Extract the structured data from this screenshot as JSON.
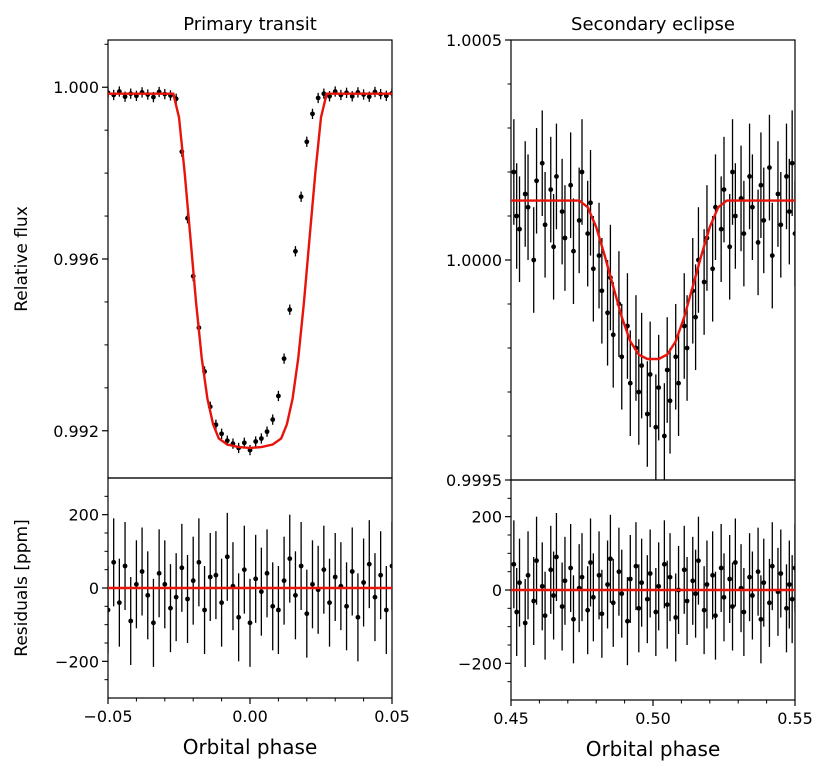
{
  "chart_data": [
    {
      "id": "transit_flux",
      "type": "scatter",
      "title": "Primary transit",
      "ylabel": "Relative flux",
      "xlim": [
        -0.05,
        0.05
      ],
      "ylim": [
        0.9909,
        1.0011
      ],
      "yticks": [
        {
          "v": 0.992,
          "label": "0.992"
        },
        {
          "v": 0.996,
          "label": "0.996"
        },
        {
          "v": 1.0,
          "label": "1.000"
        }
      ],
      "yminor": [
        0.993,
        0.994,
        0.995,
        0.997,
        0.998,
        0.999,
        1.001
      ],
      "xticks": [],
      "error": 0.00012,
      "model_color": "#e8140c",
      "points": [
        [
          -0.05,
          0.99987
        ],
        [
          -0.048,
          0.99982
        ],
        [
          -0.046,
          0.9999
        ],
        [
          -0.044,
          0.99978
        ],
        [
          -0.042,
          0.99985
        ],
        [
          -0.04,
          0.9998
        ],
        [
          -0.038,
          0.99988
        ],
        [
          -0.036,
          0.99983
        ],
        [
          -0.034,
          0.99977
        ],
        [
          -0.032,
          0.99989
        ],
        [
          -0.03,
          0.99984
        ],
        [
          -0.028,
          0.99981
        ],
        [
          -0.026,
          0.99973
        ],
        [
          -0.024,
          0.9985
        ],
        [
          -0.022,
          0.99695
        ],
        [
          -0.02,
          0.9956
        ],
        [
          -0.018,
          0.9944
        ],
        [
          -0.016,
          0.99338
        ],
        [
          -0.014,
          0.99256
        ],
        [
          -0.012,
          0.99214
        ],
        [
          -0.01,
          0.99193
        ],
        [
          -0.008,
          0.99177
        ],
        [
          -0.006,
          0.9917
        ],
        [
          -0.004,
          0.9916
        ],
        [
          -0.002,
          0.99172
        ],
        [
          0.0,
          0.99155
        ],
        [
          0.002,
          0.99175
        ],
        [
          0.004,
          0.99182
        ],
        [
          0.006,
          0.99198
        ],
        [
          0.008,
          0.99226
        ],
        [
          0.01,
          0.99281
        ],
        [
          0.012,
          0.99368
        ],
        [
          0.014,
          0.99482
        ],
        [
          0.016,
          0.99618
        ],
        [
          0.018,
          0.99745
        ],
        [
          0.02,
          0.99873
        ],
        [
          0.022,
          0.99938
        ],
        [
          0.024,
          0.99975
        ],
        [
          0.026,
          0.99985
        ],
        [
          0.028,
          0.99979
        ],
        [
          0.03,
          0.9999
        ],
        [
          0.032,
          0.99982
        ],
        [
          0.034,
          0.99987
        ],
        [
          0.036,
          0.99979
        ],
        [
          0.038,
          0.99988
        ],
        [
          0.04,
          0.99983
        ],
        [
          0.042,
          0.99978
        ],
        [
          0.044,
          0.99989
        ],
        [
          0.046,
          0.99984
        ],
        [
          0.048,
          0.9998
        ],
        [
          0.05,
          0.99986
        ]
      ],
      "model": [
        [
          -0.05,
          0.99985
        ],
        [
          -0.027,
          0.99985
        ],
        [
          -0.025,
          0.9993
        ],
        [
          -0.023,
          0.998
        ],
        [
          -0.021,
          0.9965
        ],
        [
          -0.019,
          0.995
        ],
        [
          -0.017,
          0.9937
        ],
        [
          -0.015,
          0.99275
        ],
        [
          -0.013,
          0.99215
        ],
        [
          -0.011,
          0.99182
        ],
        [
          -0.008,
          0.99168
        ],
        [
          -0.004,
          0.99162
        ],
        [
          0.0,
          0.9916
        ],
        [
          0.004,
          0.99162
        ],
        [
          0.008,
          0.99168
        ],
        [
          0.011,
          0.99182
        ],
        [
          0.013,
          0.99215
        ],
        [
          0.015,
          0.99275
        ],
        [
          0.017,
          0.9937
        ],
        [
          0.019,
          0.995
        ],
        [
          0.021,
          0.9965
        ],
        [
          0.023,
          0.998
        ],
        [
          0.025,
          0.9993
        ],
        [
          0.027,
          0.99985
        ],
        [
          0.05,
          0.99985
        ]
      ]
    },
    {
      "id": "transit_resid",
      "type": "scatter",
      "title": "",
      "ylabel": "Residuals [ppm]",
      "xlabel": "Orbital phase",
      "xlim": [
        -0.05,
        0.05
      ],
      "ylim": [
        -300,
        300
      ],
      "yticks": [
        {
          "v": -200,
          "label": "−200"
        },
        {
          "v": 0,
          "label": "0"
        },
        {
          "v": 200,
          "label": "200"
        }
      ],
      "yminor": [
        -250,
        -150,
        -100,
        -50,
        50,
        100,
        150,
        250
      ],
      "xticks": [
        {
          "v": -0.05,
          "label": "−0.05"
        },
        {
          "v": 0.0,
          "label": "0.00"
        },
        {
          "v": 0.05,
          "label": "0.05"
        }
      ],
      "xminor": [
        -0.04,
        -0.03,
        -0.02,
        -0.01,
        0.01,
        0.02,
        0.03,
        0.04
      ],
      "error": 120,
      "model_color": "#e8140c",
      "points": [
        [
          -0.05,
          -60
        ],
        [
          -0.048,
          70
        ],
        [
          -0.046,
          -40
        ],
        [
          -0.044,
          60
        ],
        [
          -0.042,
          -90
        ],
        [
          -0.04,
          10
        ],
        [
          -0.038,
          45
        ],
        [
          -0.036,
          -20
        ],
        [
          -0.034,
          -95
        ],
        [
          -0.032,
          40
        ],
        [
          -0.03,
          10
        ],
        [
          -0.028,
          -55
        ],
        [
          -0.026,
          -25
        ],
        [
          -0.024,
          55
        ],
        [
          -0.022,
          -30
        ],
        [
          -0.02,
          20
        ],
        [
          -0.018,
          70
        ],
        [
          -0.016,
          -60
        ],
        [
          -0.014,
          30
        ],
        [
          -0.012,
          35
        ],
        [
          -0.01,
          -40
        ],
        [
          -0.008,
          85
        ],
        [
          -0.006,
          5
        ],
        [
          -0.004,
          -80
        ],
        [
          -0.002,
          50
        ],
        [
          0.0,
          -95
        ],
        [
          0.002,
          25
        ],
        [
          0.004,
          -10
        ],
        [
          0.006,
          40
        ],
        [
          0.008,
          -50
        ],
        [
          0.01,
          -60
        ],
        [
          0.012,
          20
        ],
        [
          0.014,
          80
        ],
        [
          0.016,
          -20
        ],
        [
          0.018,
          60
        ],
        [
          0.02,
          -70
        ],
        [
          0.022,
          10
        ],
        [
          0.024,
          -5
        ],
        [
          0.026,
          50
        ],
        [
          0.028,
          -40
        ],
        [
          0.03,
          30
        ],
        [
          0.032,
          5
        ],
        [
          0.034,
          -50
        ],
        [
          0.036,
          45
        ],
        [
          0.038,
          -80
        ],
        [
          0.04,
          15
        ],
        [
          0.042,
          65
        ],
        [
          0.044,
          -25
        ],
        [
          0.046,
          35
        ],
        [
          0.048,
          -60
        ],
        [
          0.05,
          60
        ]
      ],
      "model": [
        [
          -0.05,
          0
        ],
        [
          0.05,
          0
        ]
      ]
    },
    {
      "id": "eclipse_flux",
      "type": "scatter",
      "title": "Secondary eclipse",
      "ylabel": "",
      "xlim": [
        0.45,
        0.55
      ],
      "ylim": [
        0.9995,
        1.0005
      ],
      "yticks": [
        {
          "v": 0.9995,
          "label": "0.9995"
        },
        {
          "v": 1.0,
          "label": "1.0000"
        },
        {
          "v": 1.0005,
          "label": "1.0005"
        }
      ],
      "yminor": [
        0.9996,
        0.9997,
        0.9998,
        0.9999,
        1.0001,
        1.0002,
        1.0003,
        1.0004
      ],
      "xticks": [],
      "error": 0.00012,
      "model_color": "#e8140c",
      "points": [
        [
          0.451,
          1.0002
        ],
        [
          0.452,
          1.0001
        ],
        [
          0.453,
          1.00007
        ],
        [
          0.455,
          1.00015
        ],
        [
          0.456,
          1.00012
        ],
        [
          0.458,
          1.0
        ],
        [
          0.459,
          1.00018
        ],
        [
          0.461,
          1.00022
        ],
        [
          0.462,
          1.00008
        ],
        [
          0.464,
          1.00016
        ],
        [
          0.465,
          1.00003
        ],
        [
          0.466,
          1.00019
        ],
        [
          0.468,
          1.00011
        ],
        [
          0.469,
          1.00005
        ],
        [
          0.471,
          1.00017
        ],
        [
          0.472,
          1.00002
        ],
        [
          0.474,
          1.00009
        ],
        [
          0.475,
          1.0002
        ],
        [
          0.477,
          1.00006
        ],
        [
          0.478,
          1.00013
        ],
        [
          0.479,
          0.99998
        ],
        [
          0.481,
          1.00001
        ],
        [
          0.482,
          0.99993
        ],
        [
          0.484,
          0.99988
        ],
        [
          0.485,
          0.99996
        ],
        [
          0.486,
          0.99983
        ],
        [
          0.488,
          0.9999
        ],
        [
          0.489,
          0.99978
        ],
        [
          0.491,
          0.99985
        ],
        [
          0.492,
          0.99972
        ],
        [
          0.494,
          0.9998
        ],
        [
          0.495,
          0.9997
        ],
        [
          0.496,
          0.99976
        ],
        [
          0.498,
          0.99965
        ],
        [
          0.499,
          0.99974
        ],
        [
          0.501,
          0.99962
        ],
        [
          0.502,
          0.99971
        ],
        [
          0.504,
          0.9996
        ],
        [
          0.505,
          0.99975
        ],
        [
          0.506,
          0.99968
        ],
        [
          0.508,
          0.99978
        ],
        [
          0.509,
          0.99972
        ],
        [
          0.511,
          0.99985
        ],
        [
          0.512,
          0.9998
        ],
        [
          0.514,
          0.99993
        ],
        [
          0.515,
          0.99987
        ],
        [
          0.516,
          1.0
        ],
        [
          0.518,
          0.99995
        ],
        [
          0.519,
          1.00005
        ],
        [
          0.521,
          0.99998
        ],
        [
          0.522,
          1.00012
        ],
        [
          0.524,
          1.00007
        ],
        [
          0.525,
          1.00016
        ],
        [
          0.527,
          1.00003
        ],
        [
          0.528,
          1.0002
        ],
        [
          0.529,
          1.0001
        ],
        [
          0.531,
          1.00014
        ],
        [
          0.532,
          1.00006
        ],
        [
          0.534,
          1.00019
        ],
        [
          0.535,
          1.00012
        ],
        [
          0.537,
          1.00004
        ],
        [
          0.538,
          1.00017
        ],
        [
          0.539,
          1.00009
        ],
        [
          0.541,
          1.00021
        ],
        [
          0.542,
          1.00001
        ],
        [
          0.544,
          1.00015
        ],
        [
          0.545,
          1.00008
        ],
        [
          0.547,
          1.00019
        ],
        [
          0.548,
          1.00011
        ],
        [
          0.549,
          1.00022
        ],
        [
          0.55,
          1.00006
        ]
      ],
      "model": [
        [
          0.45,
          1.000135
        ],
        [
          0.474,
          1.000135
        ],
        [
          0.477,
          1.00012
        ],
        [
          0.48,
          1.000075
        ],
        [
          0.483,
          1.00001
        ],
        [
          0.486,
          0.99994
        ],
        [
          0.489,
          0.99987
        ],
        [
          0.492,
          0.999815
        ],
        [
          0.495,
          0.999785
        ],
        [
          0.498,
          0.999775
        ],
        [
          0.502,
          0.999775
        ],
        [
          0.505,
          0.999785
        ],
        [
          0.508,
          0.999815
        ],
        [
          0.511,
          0.99987
        ],
        [
          0.514,
          0.99994
        ],
        [
          0.517,
          1.00001
        ],
        [
          0.52,
          1.000075
        ],
        [
          0.523,
          1.00012
        ],
        [
          0.526,
          1.000135
        ],
        [
          0.55,
          1.000135
        ]
      ]
    },
    {
      "id": "eclipse_resid",
      "type": "scatter",
      "title": "",
      "ylabel": "",
      "xlabel": "Orbital phase",
      "xlim": [
        0.45,
        0.55
      ],
      "ylim": [
        -300,
        300
      ],
      "yticks": [
        {
          "v": -200,
          "label": "−200"
        },
        {
          "v": 0,
          "label": "0"
        },
        {
          "v": 200,
          "label": "200"
        }
      ],
      "yminor": [
        -250,
        -150,
        -100,
        -50,
        50,
        100,
        150,
        250
      ],
      "xticks": [
        {
          "v": 0.45,
          "label": "0.45"
        },
        {
          "v": 0.5,
          "label": "0.50"
        },
        {
          "v": 0.55,
          "label": "0.55"
        }
      ],
      "xminor": [
        0.46,
        0.47,
        0.48,
        0.49,
        0.51,
        0.52,
        0.53,
        0.54
      ],
      "error": 120,
      "model_color": "#e8140c",
      "points": [
        [
          0.451,
          70
        ],
        [
          0.452,
          -60
        ],
        [
          0.453,
          20
        ],
        [
          0.455,
          -90
        ],
        [
          0.456,
          40
        ],
        [
          0.458,
          -30
        ],
        [
          0.459,
          80
        ],
        [
          0.461,
          10
        ],
        [
          0.462,
          -70
        ],
        [
          0.464,
          55
        ],
        [
          0.465,
          -15
        ],
        [
          0.466,
          90
        ],
        [
          0.468,
          -45
        ],
        [
          0.469,
          25
        ],
        [
          0.471,
          60
        ],
        [
          0.472,
          -80
        ],
        [
          0.474,
          5
        ],
        [
          0.475,
          35
        ],
        [
          0.477,
          -55
        ],
        [
          0.478,
          75
        ],
        [
          0.479,
          -20
        ],
        [
          0.481,
          40
        ],
        [
          0.482,
          -65
        ],
        [
          0.484,
          15
        ],
        [
          0.485,
          85
        ],
        [
          0.486,
          -35
        ],
        [
          0.488,
          50
        ],
        [
          0.489,
          -10
        ],
        [
          0.491,
          -85
        ],
        [
          0.492,
          30
        ],
        [
          0.494,
          65
        ],
        [
          0.495,
          -50
        ],
        [
          0.496,
          20
        ],
        [
          0.498,
          -25
        ],
        [
          0.499,
          45
        ],
        [
          0.501,
          -60
        ],
        [
          0.502,
          10
        ],
        [
          0.504,
          70
        ],
        [
          0.505,
          -40
        ],
        [
          0.506,
          35
        ],
        [
          0.508,
          -75
        ],
        [
          0.509,
          0
        ],
        [
          0.511,
          55
        ],
        [
          0.512,
          -30
        ],
        [
          0.514,
          25
        ],
        [
          0.515,
          -10
        ],
        [
          0.516,
          80
        ],
        [
          0.518,
          -55
        ],
        [
          0.519,
          15
        ],
        [
          0.521,
          40
        ],
        [
          0.522,
          -70
        ],
        [
          0.524,
          60
        ],
        [
          0.525,
          -20
        ],
        [
          0.527,
          30
        ],
        [
          0.528,
          -45
        ],
        [
          0.529,
          75
        ],
        [
          0.531,
          5
        ],
        [
          0.532,
          -60
        ],
        [
          0.534,
          35
        ],
        [
          0.535,
          -15
        ],
        [
          0.537,
          50
        ],
        [
          0.538,
          -80
        ],
        [
          0.539,
          20
        ],
        [
          0.541,
          -35
        ],
        [
          0.542,
          65
        ],
        [
          0.544,
          -5
        ],
        [
          0.545,
          45
        ],
        [
          0.547,
          -50
        ],
        [
          0.548,
          15
        ],
        [
          0.549,
          -25
        ],
        [
          0.55,
          60
        ]
      ],
      "model": [
        [
          0.45,
          0
        ],
        [
          0.55,
          0
        ]
      ]
    }
  ]
}
